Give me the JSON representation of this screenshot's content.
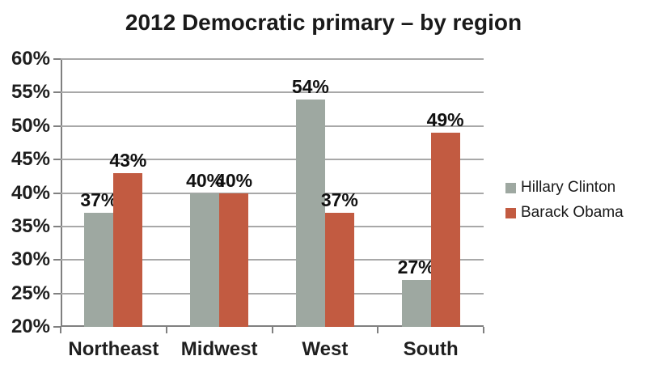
{
  "title": "2012 Democratic primary – by region",
  "colors": {
    "clinton_bar": "#9EA8A1",
    "obama_bar": "#C25B41",
    "gridline": "#A8A8A8",
    "axis": "#808080",
    "text": "#1A1A1A"
  },
  "legend": {
    "position": "right",
    "entries": [
      {
        "label": "Hillary Clinton",
        "color": "#9EA8A1"
      },
      {
        "label": "Barack Obama",
        "color": "#C25B41"
      }
    ]
  },
  "chart_data": {
    "type": "bar",
    "title": "2012 Democratic primary – by region",
    "categories": [
      "Northeast",
      "Midwest",
      "West",
      "South"
    ],
    "series": [
      {
        "name": "Hillary Clinton",
        "color": "#9EA8A1",
        "values": [
          37,
          40,
          54,
          27
        ]
      },
      {
        "name": "Barack Obama",
        "color": "#C25B41",
        "values": [
          43,
          40,
          37,
          49
        ]
      }
    ],
    "xlabel": "",
    "ylabel": "",
    "ylim": [
      20,
      60
    ],
    "ytick_step": 5,
    "ytick_labels": [
      "20%",
      "25%",
      "30%",
      "35%",
      "40%",
      "45%",
      "50%",
      "55%",
      "60%"
    ],
    "value_label_format": "percent",
    "data_labels": [
      [
        "37%",
        "40%",
        "54%",
        "27%"
      ],
      [
        "43%",
        "40%",
        "37%",
        "49%"
      ]
    ],
    "grid": true,
    "legend_position": "right"
  }
}
